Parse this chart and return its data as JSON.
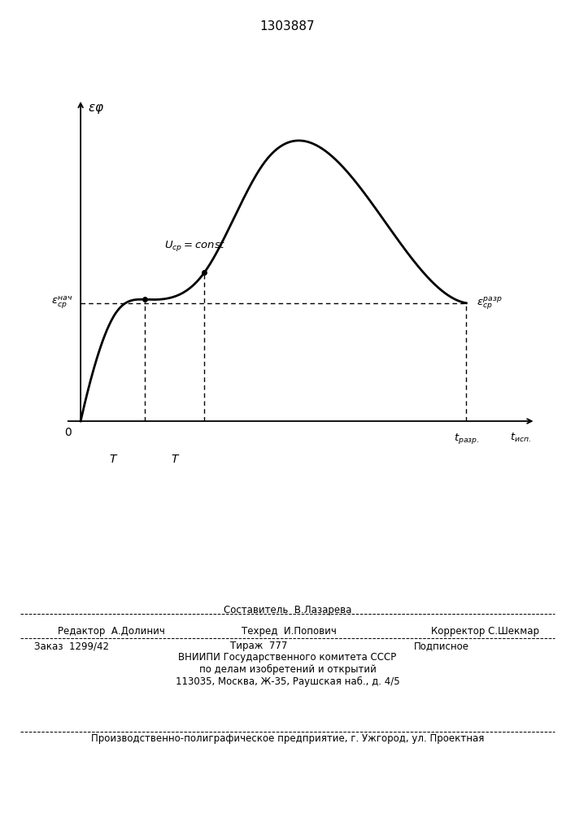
{
  "title": "1303887",
  "footer_line1": "Составитель  В.Лазарева",
  "footer_editor": "Редактор  А.Долинич",
  "footer_techred": "Техред  И.Попович",
  "footer_corrector": "Корректор С.Шекмар",
  "footer_order": "Заказ  1299/42",
  "footer_tirazh": "Тираж  777",
  "footer_podpisnoe": "Подписное",
  "footer_vnipi": "ВНИИПИ Государственного комитета СССР",
  "footer_dela": "по делам изобретений и открытий",
  "footer_address": "113035, Москва, Ж-35, Раушская наб., д. 4/5",
  "footer_production": "Производственно-полиграфическое предприятие, г. Ужгород, ул. Проектная"
}
